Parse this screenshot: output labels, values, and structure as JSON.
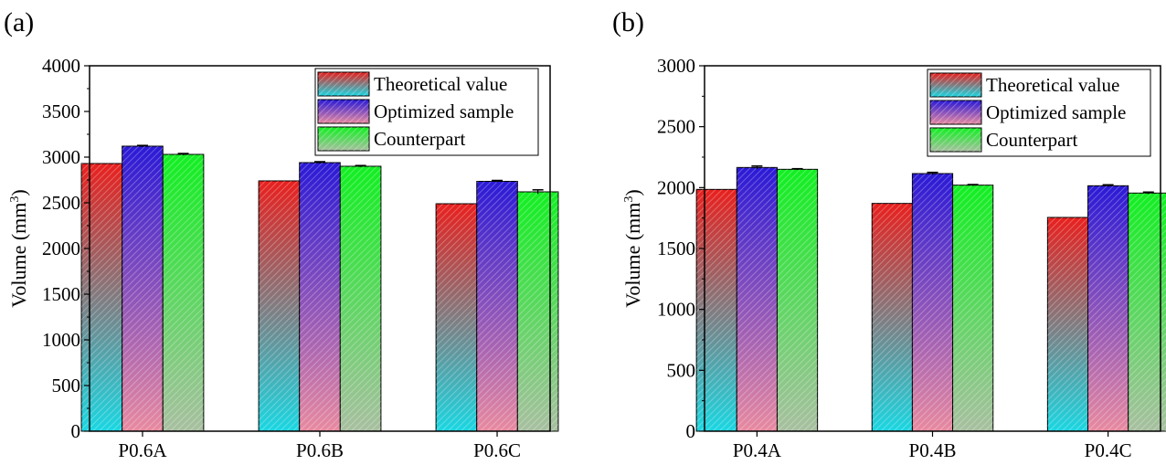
{
  "figure": {
    "panels": [
      {
        "label": "(a)"
      },
      {
        "label": "(b)"
      }
    ]
  },
  "chart_data": [
    {
      "type": "bar",
      "panel_label": "(a)",
      "ylabel": "Volume (mm",
      "ylabel_superscript": "3",
      "ylabel_suffix": ")",
      "ylim": [
        0,
        4000
      ],
      "yticks": [
        0,
        500,
        1000,
        1500,
        2000,
        2500,
        3000,
        3500,
        4000
      ],
      "categories": [
        "P0.6A",
        "P0.6B",
        "P0.6C"
      ],
      "legend_position": "top-right",
      "series": [
        {
          "name": "Theoretical value",
          "values": [
            2930,
            2740,
            2490
          ],
          "errors": [
            0,
            0,
            0
          ],
          "top_color": "#e8201e",
          "bottom_color": "#1ad7e2"
        },
        {
          "name": "Optimized sample",
          "values": [
            3120,
            2940,
            2735
          ],
          "errors": [
            8,
            10,
            10
          ],
          "top_color": "#2a19d6",
          "bottom_color": "#e88aa0"
        },
        {
          "name": "Counterpart",
          "values": [
            3030,
            2900,
            2620
          ],
          "errors": [
            10,
            8,
            22
          ],
          "top_color": "#12ef22",
          "bottom_color": "#a8bfa0"
        }
      ]
    },
    {
      "type": "bar",
      "panel_label": "(b)",
      "ylabel": "Volume (mm",
      "ylabel_superscript": "3",
      "ylabel_suffix": ")",
      "ylim": [
        0,
        3000
      ],
      "yticks": [
        0,
        500,
        1000,
        1500,
        2000,
        2500,
        3000
      ],
      "categories": [
        "P0.4A",
        "P0.4B",
        "P0.4C"
      ],
      "legend_position": "top-right",
      "series": [
        {
          "name": "Theoretical value",
          "values": [
            1985,
            1870,
            1755
          ],
          "errors": [
            0,
            0,
            0
          ],
          "top_color": "#e8201e",
          "bottom_color": "#1ad7e2"
        },
        {
          "name": "Optimized sample",
          "values": [
            2165,
            2115,
            2015
          ],
          "errors": [
            12,
            10,
            8
          ],
          "top_color": "#2a19d6",
          "bottom_color": "#e88aa0"
        },
        {
          "name": "Counterpart",
          "values": [
            2150,
            2020,
            1955
          ],
          "errors": [
            5,
            5,
            8
          ],
          "top_color": "#12ef22",
          "bottom_color": "#a8bfa0"
        }
      ]
    }
  ]
}
